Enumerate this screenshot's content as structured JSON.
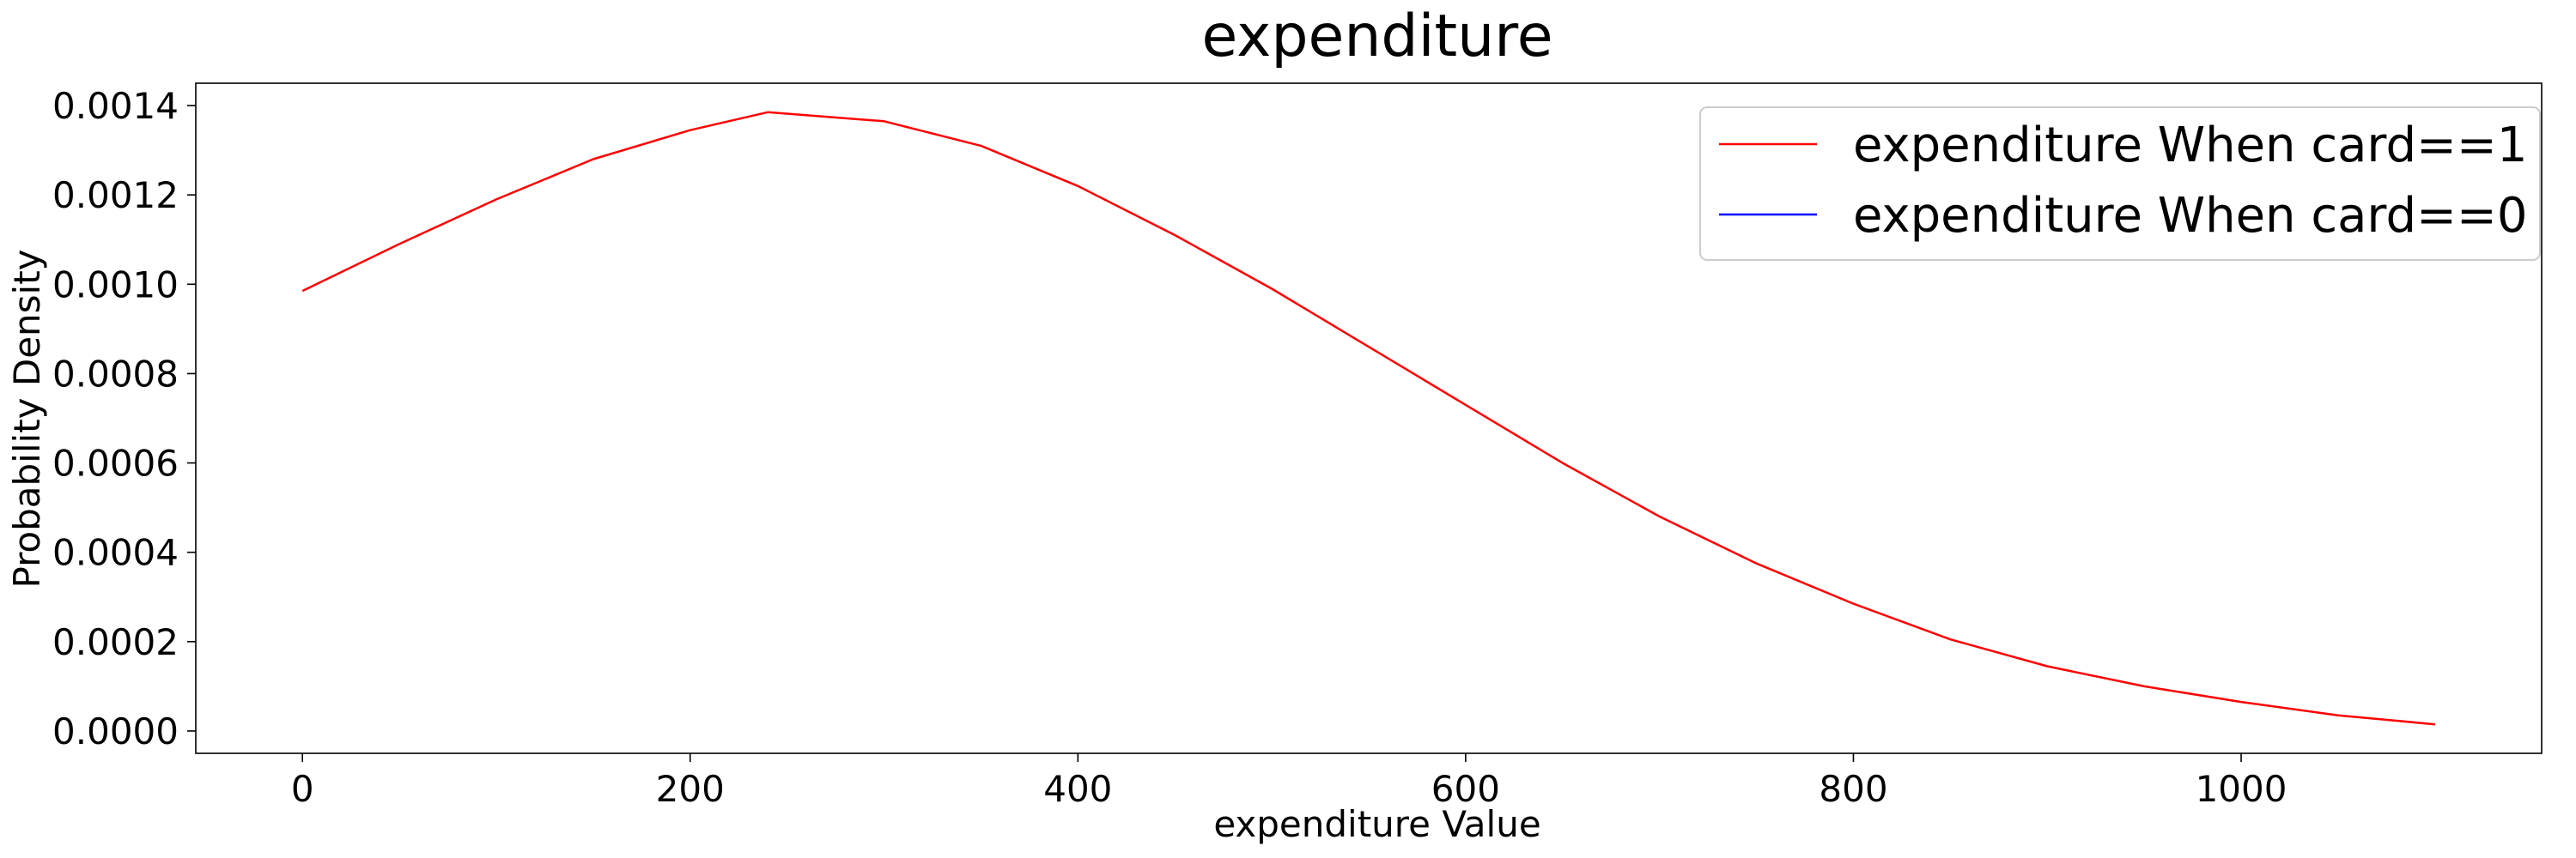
{
  "chart_data": {
    "type": "line",
    "title": "expenditure",
    "xlabel": "expenditure Value",
    "ylabel": "Probability Density",
    "xlim": [
      -55,
      1155
    ],
    "ylim": [
      -5e-05,
      0.00145
    ],
    "xticks": [
      0,
      200,
      400,
      600,
      800,
      1000
    ],
    "xtick_labels": [
      "0",
      "200",
      "400",
      "600",
      "800",
      "1000"
    ],
    "yticks": [
      0,
      0.0002,
      0.0004,
      0.0006,
      0.0008,
      0.001,
      0.0012,
      0.0014
    ],
    "ytick_labels": [
      "0.0000",
      "0.0002",
      "0.0004",
      "0.0006",
      "0.0008",
      "0.0010",
      "0.0012",
      "0.0014"
    ],
    "grid": false,
    "legend_position": "top-right",
    "series": [
      {
        "name": "expenditure When card==1",
        "color": "#ff0000",
        "x": [
          0,
          50,
          100,
          150,
          200,
          240,
          300,
          350,
          400,
          450,
          500,
          550,
          600,
          650,
          700,
          750,
          800,
          850,
          900,
          950,
          1000,
          1050,
          1100
        ],
        "y": [
          0.000985,
          0.00109,
          0.00119,
          0.00128,
          0.001345,
          0.001385,
          0.001365,
          0.00131,
          0.00122,
          0.00111,
          0.00099,
          0.00086,
          0.00073,
          0.0006,
          0.00048,
          0.000375,
          0.000285,
          0.000205,
          0.000145,
          0.0001,
          6.5e-05,
          3.5e-05,
          1.5e-05
        ]
      },
      {
        "name": "expenditure When card==0",
        "color": "#0000ff",
        "x": [],
        "y": []
      }
    ]
  }
}
